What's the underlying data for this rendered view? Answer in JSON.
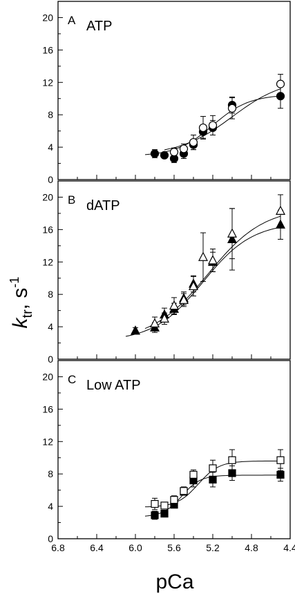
{
  "chart_data": [
    {
      "type": "scatter",
      "panel": "A",
      "title": "ATP",
      "x_values_are": "pCa",
      "xlim": [
        6.8,
        4.4
      ],
      "ylim": [
        0,
        22
      ],
      "yticks": [
        0,
        4,
        8,
        12,
        16,
        20
      ],
      "series": [
        {
          "marker": "circle-filled",
          "x": [
            5.8,
            5.7,
            5.6,
            5.5,
            5.4,
            5.3,
            5.2,
            5.0,
            4.5
          ],
          "y": [
            3.2,
            3.0,
            2.6,
            3.2,
            4.3,
            5.9,
            6.4,
            9.2,
            10.3
          ],
          "yerr": [
            0.5,
            0.3,
            0.5,
            0.6,
            0.6,
            0.8,
            0.9,
            1.0,
            1.5
          ],
          "fit": {
            "bottom": 2.9,
            "top": 10.5,
            "pca50": 5.2,
            "hill": 2.3
          }
        },
        {
          "marker": "circle-open",
          "x": [
            5.6,
            5.5,
            5.4,
            5.3,
            5.2,
            5.0,
            4.5
          ],
          "y": [
            3.4,
            3.8,
            4.6,
            6.4,
            6.7,
            8.8,
            11.8
          ],
          "yerr": [
            0.5,
            0.6,
            0.9,
            1.4,
            1.2,
            1.3,
            1.2
          ],
          "fit": {
            "bottom": 3.0,
            "top": 12.5,
            "pca50": 5.0,
            "hill": 1.6
          }
        }
      ]
    },
    {
      "type": "scatter",
      "panel": "B",
      "title": "dATP",
      "x_values_are": "pCa",
      "xlim": [
        6.8,
        4.4
      ],
      "ylim": [
        0,
        22
      ],
      "yticks": [
        0,
        4,
        8,
        12,
        16,
        20
      ],
      "series": [
        {
          "marker": "triangle-filled",
          "x": [
            6.0,
            5.8,
            5.7,
            5.6,
            5.5,
            5.4,
            5.2,
            5.0,
            4.5
          ],
          "y": [
            3.5,
            3.9,
            5.5,
            6.2,
            7.5,
            9.3,
            12.0,
            14.8,
            16.6
          ],
          "yerr": [
            0.4,
            0.6,
            0.8,
            0.7,
            0.8,
            1.0,
            1.2,
            3.8,
            1.8
          ],
          "fit": {
            "bottom": 2.2,
            "top": 16.9,
            "pca50": 5.3,
            "hill": 1.7
          }
        },
        {
          "marker": "triangle-open",
          "x": [
            5.8,
            5.7,
            5.6,
            5.5,
            5.4,
            5.3,
            5.2,
            5.0,
            4.5
          ],
          "y": [
            4.4,
            5.0,
            6.6,
            7.3,
            9.0,
            12.6,
            12.2,
            15.5,
            18.3
          ],
          "yerr": [
            0.8,
            0.7,
            1.0,
            0.8,
            1.2,
            3.0,
            1.4,
            3.1,
            2.0
          ],
          "fit": {
            "bottom": 2.2,
            "top": 18.8,
            "pca50": 5.25,
            "hill": 1.5
          }
        }
      ]
    },
    {
      "type": "scatter",
      "panel": "C",
      "title": "Low ATP",
      "x_values_are": "pCa",
      "xlim": [
        6.8,
        4.4
      ],
      "ylim": [
        0,
        22
      ],
      "yticks": [
        0,
        4,
        8,
        12,
        16,
        20
      ],
      "xticks": [
        6.8,
        6.4,
        6.0,
        5.6,
        5.2,
        4.8,
        4.4
      ],
      "series": [
        {
          "marker": "square-filled",
          "x": [
            5.8,
            5.7,
            5.6,
            5.5,
            5.4,
            5.2,
            5.0,
            4.5
          ],
          "y": [
            2.9,
            3.1,
            4.2,
            5.8,
            7.2,
            7.3,
            8.1,
            7.9
          ],
          "yerr": [
            0.5,
            0.3,
            0.4,
            0.4,
            0.8,
            0.9,
            0.9,
            0.8
          ],
          "fit": {
            "bottom": 2.7,
            "top": 7.85,
            "pca50": 5.52,
            "hill": 4.5
          }
        },
        {
          "marker": "square-open",
          "x": [
            5.8,
            5.7,
            5.6,
            5.5,
            5.4,
            5.2,
            5.0,
            4.5
          ],
          "y": [
            4.3,
            4.1,
            4.8,
            5.9,
            7.9,
            8.7,
            9.7,
            9.7
          ],
          "yerr": [
            0.7,
            0.4,
            0.5,
            0.5,
            0.6,
            1.0,
            1.3,
            1.3
          ],
          "fit": {
            "bottom": 3.9,
            "top": 9.6,
            "pca50": 5.35,
            "hill": 4.0
          }
        }
      ]
    }
  ],
  "axes": {
    "xlabel": "pCa",
    "ylabel_main": "k",
    "ylabel_subscript": "tr",
    "ylabel_unit": ", s",
    "ylabel_superscript": "-1"
  }
}
